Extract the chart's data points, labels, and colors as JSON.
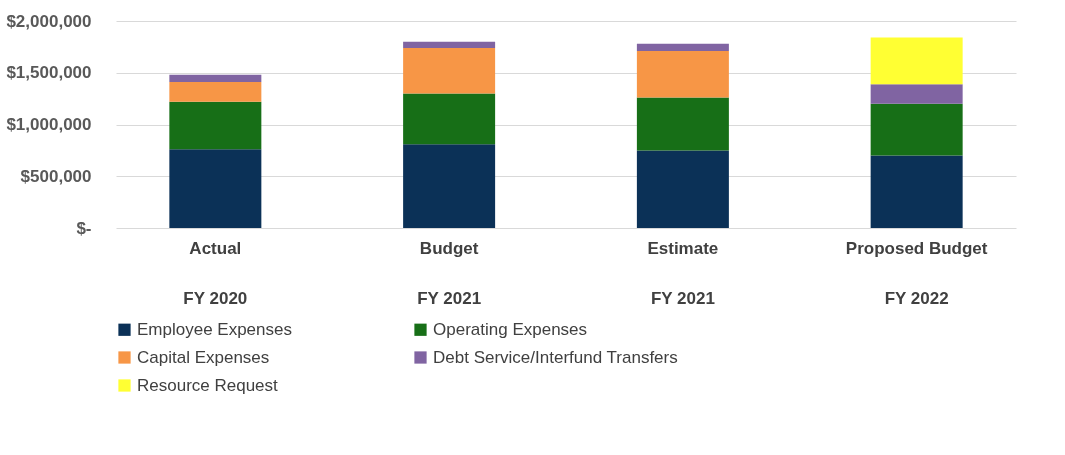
{
  "chart_data": {
    "type": "bar",
    "stacked": true,
    "categories": [
      "Actual\nFY 2020",
      "Budget\nFY 2021",
      "Estimate\nFY 2021",
      "Proposed Budget\nFY 2022"
    ],
    "series": [
      {
        "name": "Employee Expenses",
        "color": "#0b3157",
        "values": [
          760000,
          810000,
          750000,
          700000
        ]
      },
      {
        "name": "Operating Expenses",
        "color": "#176f17",
        "values": [
          460000,
          490000,
          510000,
          500000
        ]
      },
      {
        "name": "Capital Expenses",
        "color": "#f79646",
        "values": [
          190000,
          440000,
          450000,
          null
        ]
      },
      {
        "name": "Debt Service/Interfund Transfers",
        "color": "#8064a2",
        "values": [
          70000,
          60000,
          70000,
          190000
        ]
      },
      {
        "name": "Resource Request",
        "color": "#ffff33",
        "values": [
          null,
          null,
          null,
          450000
        ]
      }
    ],
    "ylim": [
      0,
      2000000
    ],
    "yticks": [
      {
        "value": 0,
        "label": "$-"
      },
      {
        "value": 500000,
        "label": "$500,000"
      },
      {
        "value": 1000000,
        "label": "$1,000,000"
      },
      {
        "value": 1500000,
        "label": "$1,500,000"
      },
      {
        "value": 2000000,
        "label": "$2,000,000"
      }
    ],
    "grid": "y",
    "legend": "bottom"
  }
}
